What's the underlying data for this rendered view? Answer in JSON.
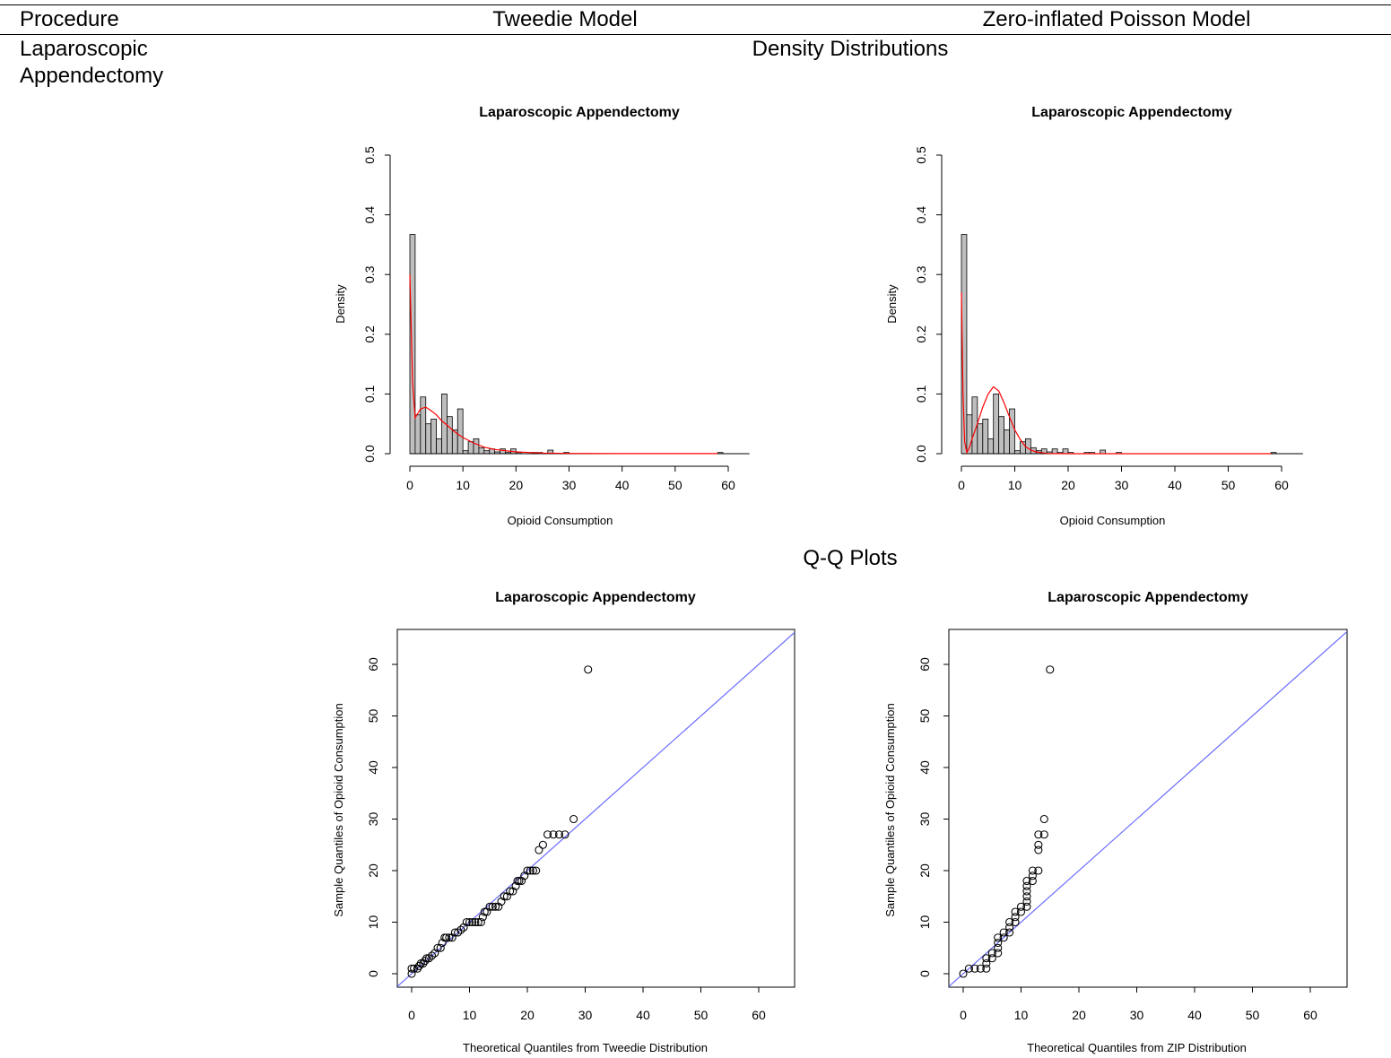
{
  "table": {
    "headers": [
      "Procedure",
      "Tweedie Model",
      "Zero-inflated Poisson Model"
    ],
    "procedure_line1": "Laparoscopic",
    "procedure_line2": "Appendectomy",
    "section_density": "Density Distributions",
    "section_qq": "Q-Q Plots"
  },
  "colors": {
    "bar_fill": "#bebebe",
    "density_line": "#ff0000",
    "reference_line": "#6a6aff",
    "points": "#000000"
  },
  "chart_data": [
    {
      "type": "bar",
      "title": "Laparoscopic Appendectomy",
      "xlabel": "Opioid Consumption",
      "ylabel": "Density",
      "xlim": [
        0,
        64
      ],
      "ylim": [
        0,
        0.5
      ],
      "xticks": [
        0,
        10,
        20,
        30,
        40,
        50,
        60
      ],
      "yticks": [
        0.0,
        0.1,
        0.2,
        0.3,
        0.4,
        0.5
      ],
      "ytick_labels": [
        "0.0",
        "0.1",
        "0.2",
        "0.3",
        "0.4",
        "0.5"
      ],
      "bin_width": 1,
      "bins": [
        [
          0,
          0.367
        ],
        [
          1,
          0.065
        ],
        [
          2,
          0.095
        ],
        [
          3,
          0.05
        ],
        [
          4,
          0.058
        ],
        [
          5,
          0.025
        ],
        [
          6,
          0.1
        ],
        [
          7,
          0.062
        ],
        [
          8,
          0.04
        ],
        [
          9,
          0.075
        ],
        [
          10,
          0.005
        ],
        [
          11,
          0.02
        ],
        [
          12,
          0.025
        ],
        [
          13,
          0.01
        ],
        [
          14,
          0.005
        ],
        [
          15,
          0.008
        ],
        [
          16,
          0.003
        ],
        [
          17,
          0.008
        ],
        [
          18,
          0.002
        ],
        [
          19,
          0.008
        ],
        [
          20,
          0.002
        ],
        [
          23,
          0.002
        ],
        [
          24,
          0.002
        ],
        [
          26,
          0.006
        ],
        [
          29,
          0.002
        ],
        [
          58,
          0.002
        ]
      ],
      "fitted_curve": {
        "x": [
          0,
          0.5,
          1,
          2,
          3,
          4,
          5,
          6,
          7,
          8,
          9,
          10,
          12,
          14,
          16,
          20,
          25,
          30,
          40,
          50,
          58
        ],
        "y": [
          0.3,
          0.12,
          0.06,
          0.075,
          0.078,
          0.072,
          0.065,
          0.055,
          0.048,
          0.04,
          0.033,
          0.027,
          0.018,
          0.011,
          0.007,
          0.003,
          0.001,
          0.0005,
          0.0002,
          0.0001,
          0.0001
        ]
      }
    },
    {
      "type": "bar",
      "title": "Laparoscopic Appendectomy",
      "xlabel": "Opioid Consumption",
      "ylabel": "Density",
      "xlim": [
        0,
        64
      ],
      "ylim": [
        0,
        0.5
      ],
      "xticks": [
        0,
        10,
        20,
        30,
        40,
        50,
        60
      ],
      "yticks": [
        0.0,
        0.1,
        0.2,
        0.3,
        0.4,
        0.5
      ],
      "ytick_labels": [
        "0.0",
        "0.1",
        "0.2",
        "0.3",
        "0.4",
        "0.5"
      ],
      "bin_width": 1,
      "bins": [
        [
          0,
          0.367
        ],
        [
          1,
          0.065
        ],
        [
          2,
          0.095
        ],
        [
          3,
          0.05
        ],
        [
          4,
          0.058
        ],
        [
          5,
          0.025
        ],
        [
          6,
          0.1
        ],
        [
          7,
          0.062
        ],
        [
          8,
          0.04
        ],
        [
          9,
          0.075
        ],
        [
          10,
          0.005
        ],
        [
          11,
          0.02
        ],
        [
          12,
          0.025
        ],
        [
          13,
          0.01
        ],
        [
          14,
          0.005
        ],
        [
          15,
          0.008
        ],
        [
          16,
          0.003
        ],
        [
          17,
          0.008
        ],
        [
          18,
          0.002
        ],
        [
          19,
          0.008
        ],
        [
          20,
          0.002
        ],
        [
          23,
          0.002
        ],
        [
          24,
          0.002
        ],
        [
          26,
          0.006
        ],
        [
          29,
          0.002
        ],
        [
          58,
          0.002
        ]
      ],
      "fitted_curve": {
        "x": [
          0,
          0.3,
          0.6,
          1,
          1.5,
          2,
          3,
          4,
          5,
          6,
          7,
          8,
          9,
          10,
          11,
          12,
          13,
          14,
          16,
          18,
          20,
          25,
          30,
          58
        ],
        "y": [
          0.27,
          0.1,
          0.02,
          0.002,
          0.01,
          0.025,
          0.05,
          0.078,
          0.1,
          0.112,
          0.105,
          0.085,
          0.062,
          0.04,
          0.024,
          0.012,
          0.006,
          0.003,
          0.0005,
          0.0001,
          0,
          0,
          0,
          0
        ]
      }
    },
    {
      "type": "scatter",
      "title": "Laparoscopic Appendectomy",
      "xlabel": "Theoretical Quantiles from Tweedie Distribution",
      "ylabel": "Sample Quantiles of Opioid Consumption",
      "xlim": [
        -2.5,
        66
      ],
      "ylim": [
        -2.5,
        66
      ],
      "xticks": [
        0,
        10,
        20,
        30,
        40,
        50,
        60
      ],
      "yticks": [
        0,
        10,
        20,
        30,
        40,
        50,
        60
      ],
      "reference_line": "y = x",
      "points": [
        [
          0,
          0
        ],
        [
          0,
          1
        ],
        [
          0.4,
          1
        ],
        [
          1,
          1
        ],
        [
          1.3,
          1.5
        ],
        [
          1.6,
          2
        ],
        [
          2,
          2
        ],
        [
          2.3,
          2.5
        ],
        [
          2.6,
          3
        ],
        [
          3,
          3
        ],
        [
          3.5,
          3.5
        ],
        [
          4,
          4
        ],
        [
          4.5,
          5
        ],
        [
          5,
          5
        ],
        [
          5.3,
          6
        ],
        [
          5.7,
          7
        ],
        [
          6,
          7
        ],
        [
          6.5,
          7
        ],
        [
          7,
          7
        ],
        [
          7.5,
          8
        ],
        [
          8,
          8
        ],
        [
          8.5,
          8.5
        ],
        [
          9,
          9
        ],
        [
          9.5,
          10
        ],
        [
          10,
          10
        ],
        [
          10.5,
          10
        ],
        [
          11,
          10
        ],
        [
          11.5,
          10
        ],
        [
          12,
          10
        ],
        [
          12.3,
          11
        ],
        [
          12.6,
          12
        ],
        [
          13,
          12
        ],
        [
          13.5,
          13
        ],
        [
          14,
          13
        ],
        [
          14.5,
          13
        ],
        [
          15,
          13
        ],
        [
          15.5,
          14
        ],
        [
          16,
          15
        ],
        [
          16.5,
          15
        ],
        [
          17,
          16
        ],
        [
          17.5,
          16
        ],
        [
          18,
          17
        ],
        [
          18.3,
          18
        ],
        [
          18.6,
          18
        ],
        [
          19,
          18
        ],
        [
          19.5,
          19
        ],
        [
          20,
          20
        ],
        [
          20.5,
          20
        ],
        [
          21,
          20
        ],
        [
          21.5,
          20
        ],
        [
          22,
          24
        ],
        [
          22.7,
          25
        ],
        [
          23.5,
          27
        ],
        [
          24.5,
          27
        ],
        [
          25.5,
          27
        ],
        [
          26.5,
          27
        ],
        [
          28,
          30
        ],
        [
          30.5,
          59
        ]
      ]
    },
    {
      "type": "scatter",
      "title": "Laparoscopic Appendectomy",
      "xlabel": "Theoretical Quantiles from ZIP Distribution",
      "ylabel": "Sample Quantiles of Opioid Consumption",
      "xlim": [
        -2.5,
        66
      ],
      "ylim": [
        -2.5,
        66
      ],
      "xticks": [
        0,
        10,
        20,
        30,
        40,
        50,
        60
      ],
      "yticks": [
        0,
        10,
        20,
        30,
        40,
        50,
        60
      ],
      "reference_line": "y = x",
      "points": [
        [
          0,
          0
        ],
        [
          1,
          1
        ],
        [
          2,
          1
        ],
        [
          3,
          1
        ],
        [
          4,
          1
        ],
        [
          4,
          2
        ],
        [
          4,
          3
        ],
        [
          5,
          3
        ],
        [
          5,
          4
        ],
        [
          6,
          4
        ],
        [
          6,
          5
        ],
        [
          6,
          6
        ],
        [
          6,
          7
        ],
        [
          7,
          7
        ],
        [
          7,
          8
        ],
        [
          8,
          8
        ],
        [
          8,
          9
        ],
        [
          8,
          10
        ],
        [
          9,
          10
        ],
        [
          9,
          11
        ],
        [
          9,
          12
        ],
        [
          10,
          12
        ],
        [
          10,
          13
        ],
        [
          11,
          13
        ],
        [
          11,
          14
        ],
        [
          11,
          15
        ],
        [
          11,
          16
        ],
        [
          11,
          17
        ],
        [
          11,
          18
        ],
        [
          12,
          18
        ],
        [
          12,
          19
        ],
        [
          12,
          20
        ],
        [
          13,
          20
        ],
        [
          13,
          24
        ],
        [
          13,
          25
        ],
        [
          13,
          27
        ],
        [
          14,
          27
        ],
        [
          14,
          30
        ],
        [
          15,
          59
        ]
      ]
    }
  ]
}
